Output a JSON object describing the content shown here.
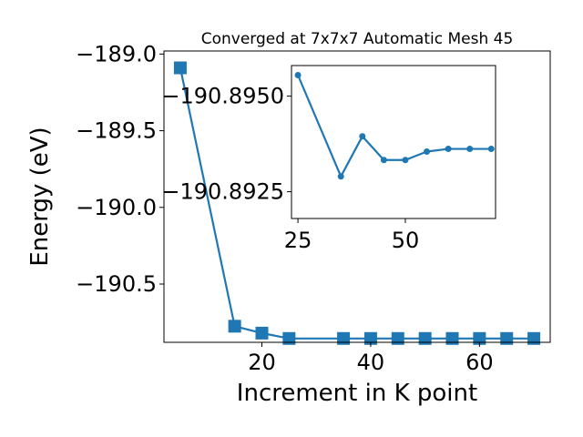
{
  "chart_data": [
    {
      "type": "line",
      "title": "Converged at 7x7x7 Automatic Mesh 45",
      "xlabel": "Increment in K point",
      "ylabel": "Energy (eV)",
      "xlim": [
        2,
        73
      ],
      "ylim": [
        -190.88,
        -188.98
      ],
      "x_ticks": [
        20,
        40,
        60
      ],
      "x_tick_labels": [
        "20",
        "40",
        "60"
      ],
      "y_ticks": [
        -189.0,
        -189.5,
        -190.0,
        -190.5
      ],
      "y_tick_labels": [
        "−189.0",
        "−189.5",
        "−190.0",
        "−190.5"
      ],
      "marker": "square",
      "color": "#1f77b4",
      "series": [
        {
          "x": [
            5,
            15,
            20,
            25,
            35,
            40,
            45,
            50,
            55,
            60,
            65,
            70
          ],
          "y": [
            -189.09,
            -190.775,
            -190.82,
            -190.855,
            -190.855,
            -190.855,
            -190.855,
            -190.855,
            -190.855,
            -190.855,
            -190.855,
            -190.855
          ]
        }
      ]
    },
    {
      "type": "line",
      "title": "",
      "xlabel": "",
      "ylabel": "",
      "xlim": [
        23.5,
        71
      ],
      "ylim": [
        -190.8918,
        -190.8958
      ],
      "x_ticks": [
        25,
        50
      ],
      "x_tick_labels": [
        "25",
        "50"
      ],
      "y_ticks": [
        -190.895,
        -190.8925
      ],
      "y_tick_labels": [
        "−190.8950",
        "−190.8925"
      ],
      "marker": "circle",
      "color": "#1f77b4",
      "series": [
        {
          "x": [
            25,
            35,
            40,
            45,
            50,
            55,
            60,
            65,
            70
          ],
          "y": [
            -190.89555,
            -190.8929,
            -190.89395,
            -190.89333,
            -190.89333,
            -190.89355,
            -190.89362,
            -190.89362,
            -190.89362
          ]
        }
      ]
    }
  ]
}
